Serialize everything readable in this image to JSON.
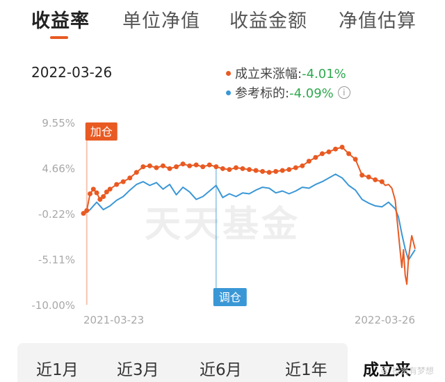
{
  "tabs": [
    "收益率",
    "单位净值",
    "收益金额",
    "净值估算"
  ],
  "date": "2022-03-26",
  "legend": {
    "fund_label": "成立来涨幅:",
    "fund_value": "-4.01%",
    "benchmark_label": "参考标的:",
    "benchmark_value": "-4.09%",
    "info_icon": "info-icon"
  },
  "colors": {
    "fund": "#e85a22",
    "benchmark": "#3a97d6",
    "positive": "#2fa84f",
    "tab_accent": "#e85a22"
  },
  "periods": [
    "近1月",
    "近3月",
    "近6月",
    "近1年",
    "成立来"
  ],
  "active_period": "成立来",
  "watermark": "@ 投资有梦想",
  "chart_data": {
    "type": "line",
    "yticks": [
      "9.55%",
      "4.66%",
      "-0.22%",
      "-5.11%",
      "-10.00%"
    ],
    "ylim": [
      -10.0,
      9.55
    ],
    "xticks": [
      "2021-03-23",
      "2022-03-26"
    ],
    "background_text": "天天基金",
    "markers": [
      {
        "label": "加仓",
        "x": 0.01
      },
      {
        "label": "调仓",
        "x": 0.4
      }
    ],
    "series": [
      {
        "name": "成立来涨幅",
        "color": "#e85a22",
        "x": [
          0.0,
          0.01,
          0.02,
          0.03,
          0.04,
          0.05,
          0.06,
          0.07,
          0.08,
          0.1,
          0.12,
          0.14,
          0.16,
          0.18,
          0.2,
          0.22,
          0.24,
          0.26,
          0.28,
          0.3,
          0.32,
          0.34,
          0.36,
          0.38,
          0.4,
          0.42,
          0.44,
          0.46,
          0.48,
          0.5,
          0.52,
          0.54,
          0.56,
          0.58,
          0.6,
          0.62,
          0.64,
          0.66,
          0.68,
          0.7,
          0.72,
          0.74,
          0.76,
          0.78,
          0.8,
          0.82,
          0.84,
          0.86,
          0.88,
          0.9,
          0.91,
          0.92,
          0.93,
          0.94,
          0.95,
          0.96,
          0.965,
          0.97,
          0.975,
          0.98,
          0.985,
          0.99,
          1.0
        ],
        "values": [
          -0.2,
          0.1,
          1.9,
          2.4,
          2.0,
          1.3,
          1.6,
          2.1,
          2.4,
          2.9,
          3.2,
          3.6,
          4.2,
          4.8,
          4.9,
          4.7,
          4.9,
          4.6,
          4.8,
          5.1,
          4.9,
          5.0,
          4.8,
          5.0,
          4.8,
          4.6,
          4.5,
          4.7,
          4.6,
          4.5,
          4.4,
          4.3,
          4.2,
          4.3,
          4.4,
          4.5,
          4.7,
          4.9,
          5.4,
          5.8,
          6.2,
          6.4,
          6.7,
          6.9,
          6.2,
          5.6,
          3.9,
          3.7,
          3.4,
          3.2,
          2.8,
          2.9,
          2.5,
          1.2,
          -2.4,
          -6.0,
          -4.1,
          -6.8,
          -7.8,
          -5.0,
          -3.8,
          -2.6,
          -4.0
        ]
      },
      {
        "name": "参考标的",
        "color": "#3a97d6",
        "x": [
          0.0,
          0.02,
          0.04,
          0.06,
          0.08,
          0.1,
          0.12,
          0.14,
          0.16,
          0.18,
          0.2,
          0.22,
          0.24,
          0.26,
          0.28,
          0.3,
          0.32,
          0.34,
          0.36,
          0.38,
          0.4,
          0.42,
          0.44,
          0.46,
          0.48,
          0.5,
          0.52,
          0.54,
          0.56,
          0.58,
          0.6,
          0.62,
          0.64,
          0.66,
          0.68,
          0.7,
          0.72,
          0.74,
          0.76,
          0.78,
          0.8,
          0.82,
          0.84,
          0.86,
          0.88,
          0.9,
          0.92,
          0.94,
          0.95,
          0.96,
          0.97,
          0.98,
          1.0
        ],
        "values": [
          -0.3,
          0.2,
          1.0,
          0.2,
          0.6,
          1.2,
          1.6,
          2.3,
          2.9,
          3.2,
          2.8,
          3.1,
          2.4,
          2.9,
          1.8,
          2.6,
          2.1,
          1.3,
          1.6,
          2.2,
          2.8,
          1.5,
          1.9,
          1.6,
          2.0,
          1.9,
          2.3,
          2.6,
          2.5,
          2.0,
          2.2,
          1.9,
          2.2,
          2.6,
          2.5,
          2.9,
          3.2,
          3.6,
          4.0,
          3.6,
          2.8,
          2.3,
          1.3,
          0.9,
          0.6,
          0.5,
          1.0,
          0.3,
          -0.6,
          -2.4,
          -4.0,
          -5.2,
          -4.09
        ]
      }
    ]
  }
}
